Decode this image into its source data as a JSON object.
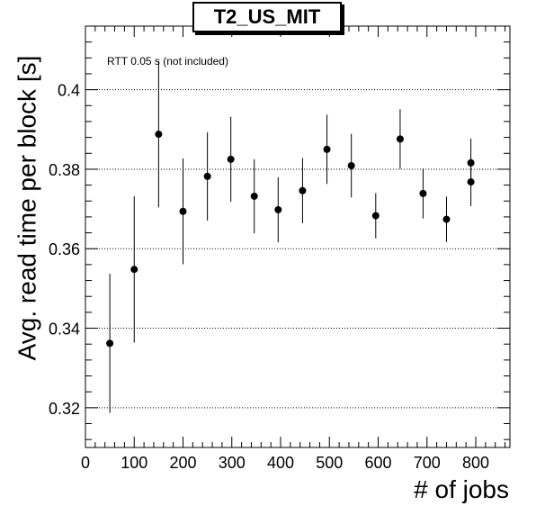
{
  "chart_data": {
    "type": "scatter",
    "title": "T2_US_MIT",
    "xlabel": "# of jobs",
    "ylabel": "Avg. read time per block [s]",
    "annotation": "RTT 0.05 s (not included)",
    "xlim": [
      0,
      870
    ],
    "ylim": [
      0.31,
      0.416
    ],
    "xticks": [
      0,
      100,
      200,
      300,
      400,
      500,
      600,
      700,
      800
    ],
    "yticks": [
      0.32,
      0.34,
      0.36,
      0.38,
      0.4
    ],
    "ytick_labels": [
      "0.32",
      "0.34",
      "0.36",
      "0.38",
      "0.4"
    ],
    "grid": "horizontal dotted at y ticks",
    "points": [
      {
        "x": 50,
        "y": 0.3362,
        "err": 0.0175
      },
      {
        "x": 100,
        "y": 0.3548,
        "err": 0.0184
      },
      {
        "x": 150,
        "y": 0.3888,
        "err": 0.0184
      },
      {
        "x": 200,
        "y": 0.3694,
        "err": 0.0133
      },
      {
        "x": 250,
        "y": 0.3782,
        "err": 0.0111
      },
      {
        "x": 298,
        "y": 0.3825,
        "err": 0.0107
      },
      {
        "x": 346,
        "y": 0.3732,
        "err": 0.0093
      },
      {
        "x": 395,
        "y": 0.3698,
        "err": 0.0082
      },
      {
        "x": 445,
        "y": 0.3746,
        "err": 0.0082
      },
      {
        "x": 495,
        "y": 0.385,
        "err": 0.0087
      },
      {
        "x": 545,
        "y": 0.3809,
        "err": 0.008
      },
      {
        "x": 595,
        "y": 0.3683,
        "err": 0.0057
      },
      {
        "x": 645,
        "y": 0.3876,
        "err": 0.0075
      },
      {
        "x": 692,
        "y": 0.3739,
        "err": 0.0063
      },
      {
        "x": 740,
        "y": 0.3674,
        "err": 0.0057
      },
      {
        "x": 790,
        "y": 0.3768,
        "err": 0.0061
      },
      {
        "x": 790,
        "y": 0.3816,
        "err": 0.0061
      }
    ]
  }
}
